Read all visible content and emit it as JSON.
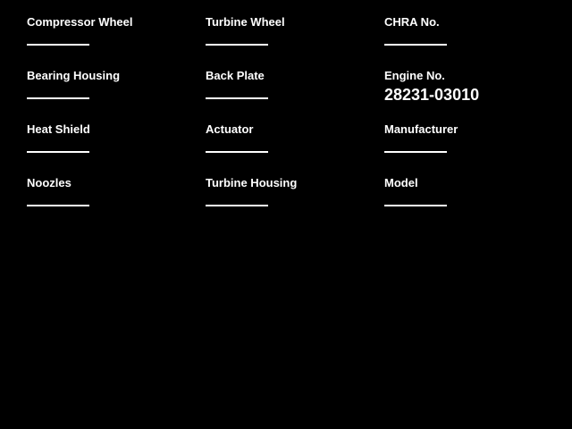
{
  "app": {
    "background_color": "#000000",
    "text_color": "#ffffff"
  },
  "form": {
    "columns": [
      {
        "fields": [
          {
            "label": "Compressor Wheel",
            "value": ""
          },
          {
            "label": "Bearing Housing",
            "value": ""
          },
          {
            "label": "Heat Shield",
            "value": ""
          },
          {
            "label": "Noozles",
            "value": ""
          }
        ]
      },
      {
        "fields": [
          {
            "label": "Turbine Wheel",
            "value": ""
          },
          {
            "label": "Back Plate",
            "value": ""
          },
          {
            "label": "Actuator",
            "value": ""
          },
          {
            "label": "Turbine Housing",
            "value": ""
          }
        ]
      },
      {
        "fields": [
          {
            "label": "CHRA No.",
            "value": ""
          },
          {
            "label": "Engine No.",
            "value": "28231-03010"
          },
          {
            "label": "Manufacturer",
            "value": ""
          },
          {
            "label": "Model",
            "value": ""
          }
        ]
      }
    ]
  }
}
